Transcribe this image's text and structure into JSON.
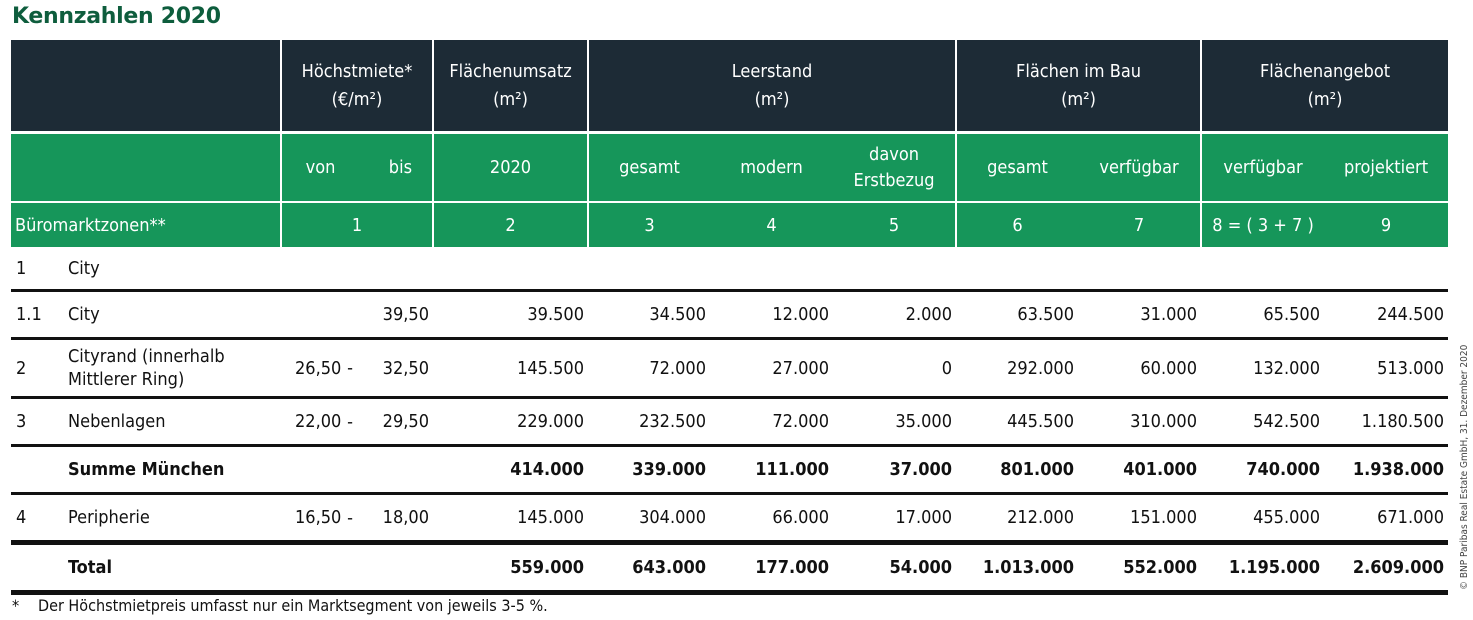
{
  "title": "Kennzahlen 2020",
  "header": {
    "groups": [
      "Höchstmiete*\n(€/m²)",
      "Flächenumsatz\n(m²)",
      "Leerstand\n(m²)",
      "Flächen im Bau\n(m²)",
      "Flächenangebot\n(m²)"
    ],
    "sub": [
      "von",
      "bis",
      "2020",
      "gesamt",
      "modern",
      "davon\nErstbezug",
      "gesamt",
      "verfügbar",
      "verfügbar",
      "projektiert"
    ],
    "zone_label": "Büromarktzonen**",
    "col_numbers": [
      "1",
      "2",
      "3",
      "4",
      "5",
      "6",
      "7",
      "8 = ( 3 + 7 )",
      "9"
    ]
  },
  "rows": [
    {
      "nr": "1",
      "name": "City",
      "von": "",
      "dash": "",
      "bis": "",
      "vals": [
        "",
        "",
        "",
        "",
        "",
        "",
        "",
        "",
        ""
      ]
    },
    {
      "nr": "1.1",
      "name": "City",
      "von": "",
      "dash": "",
      "bis": "39,50",
      "vals": [
        "39.500",
        "34.500",
        "12.000",
        "2.000",
        "63.500",
        "31.000",
        "65.500",
        "244.500"
      ]
    },
    {
      "nr": "2",
      "name": "Cityrand (innerhalb Mittlerer Ring)",
      "von": "26,50",
      "dash": "-",
      "bis": "32,50",
      "vals": [
        "145.500",
        "72.000",
        "27.000",
        "0",
        "292.000",
        "60.000",
        "132.000",
        "513.000"
      ]
    },
    {
      "nr": "3",
      "name": "Nebenlagen",
      "von": "22,00",
      "dash": "-",
      "bis": "29,50",
      "vals": [
        "229.000",
        "232.500",
        "72.000",
        "35.000",
        "445.500",
        "310.000",
        "542.500",
        "1.180.500"
      ]
    },
    {
      "nr": "",
      "name": "Summe München",
      "von": "",
      "dash": "",
      "bis": "",
      "vals": [
        "414.000",
        "339.000",
        "111.000",
        "37.000",
        "801.000",
        "401.000",
        "740.000",
        "1.938.000"
      ]
    },
    {
      "nr": "4",
      "name": "Peripherie",
      "von": "16,50",
      "dash": "-",
      "bis": "18,00",
      "vals": [
        "145.000",
        "304.000",
        "66.000",
        "17.000",
        "212.000",
        "151.000",
        "455.000",
        "671.000"
      ]
    },
    {
      "nr": "",
      "name": "Total",
      "von": "",
      "dash": "",
      "bis": "",
      "vals": [
        "559.000",
        "643.000",
        "177.000",
        "54.000",
        "1.013.000",
        "552.000",
        "1.195.000",
        "2.609.000"
      ]
    }
  ],
  "footnote": {
    "star": "*",
    "text": "Der Höchstmietpreis umfasst nur ein Marktsegment von jeweils 3-5 %."
  },
  "copyright": "© BNP Paribas Real Estate GmbH, 31. Dezember 2020"
}
